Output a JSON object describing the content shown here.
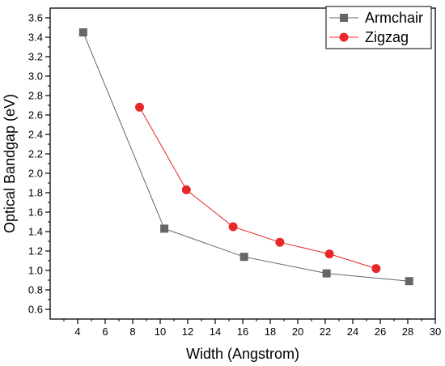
{
  "chart_data": {
    "type": "line",
    "title": "",
    "xlabel": "Width (Angstrom)",
    "ylabel": "Optical Bandgap (eV)",
    "xlim": [
      2,
      30
    ],
    "ylim": [
      0.5,
      3.7
    ],
    "xticks": [
      4,
      6,
      8,
      10,
      12,
      14,
      16,
      18,
      20,
      22,
      24,
      26,
      28,
      30
    ],
    "yticks": [
      0.6,
      0.8,
      1.0,
      1.2,
      1.4,
      1.6,
      1.8,
      2.0,
      2.2,
      2.4,
      2.6,
      2.8,
      3.0,
      3.2,
      3.4,
      3.6
    ],
    "legend_position": "top-right",
    "grid": false,
    "series": [
      {
        "name": "Armchair",
        "marker": "square",
        "color": "#666666",
        "x": [
          4.4,
          10.3,
          16.1,
          22.1,
          28.1
        ],
        "y": [
          3.45,
          1.43,
          1.14,
          0.97,
          0.89
        ]
      },
      {
        "name": "Zigzag",
        "marker": "circle",
        "color": "#e8272a",
        "x": [
          8.5,
          11.9,
          15.3,
          18.7,
          22.3,
          25.7
        ],
        "y": [
          2.68,
          1.83,
          1.45,
          1.29,
          1.17,
          1.02
        ]
      }
    ]
  }
}
